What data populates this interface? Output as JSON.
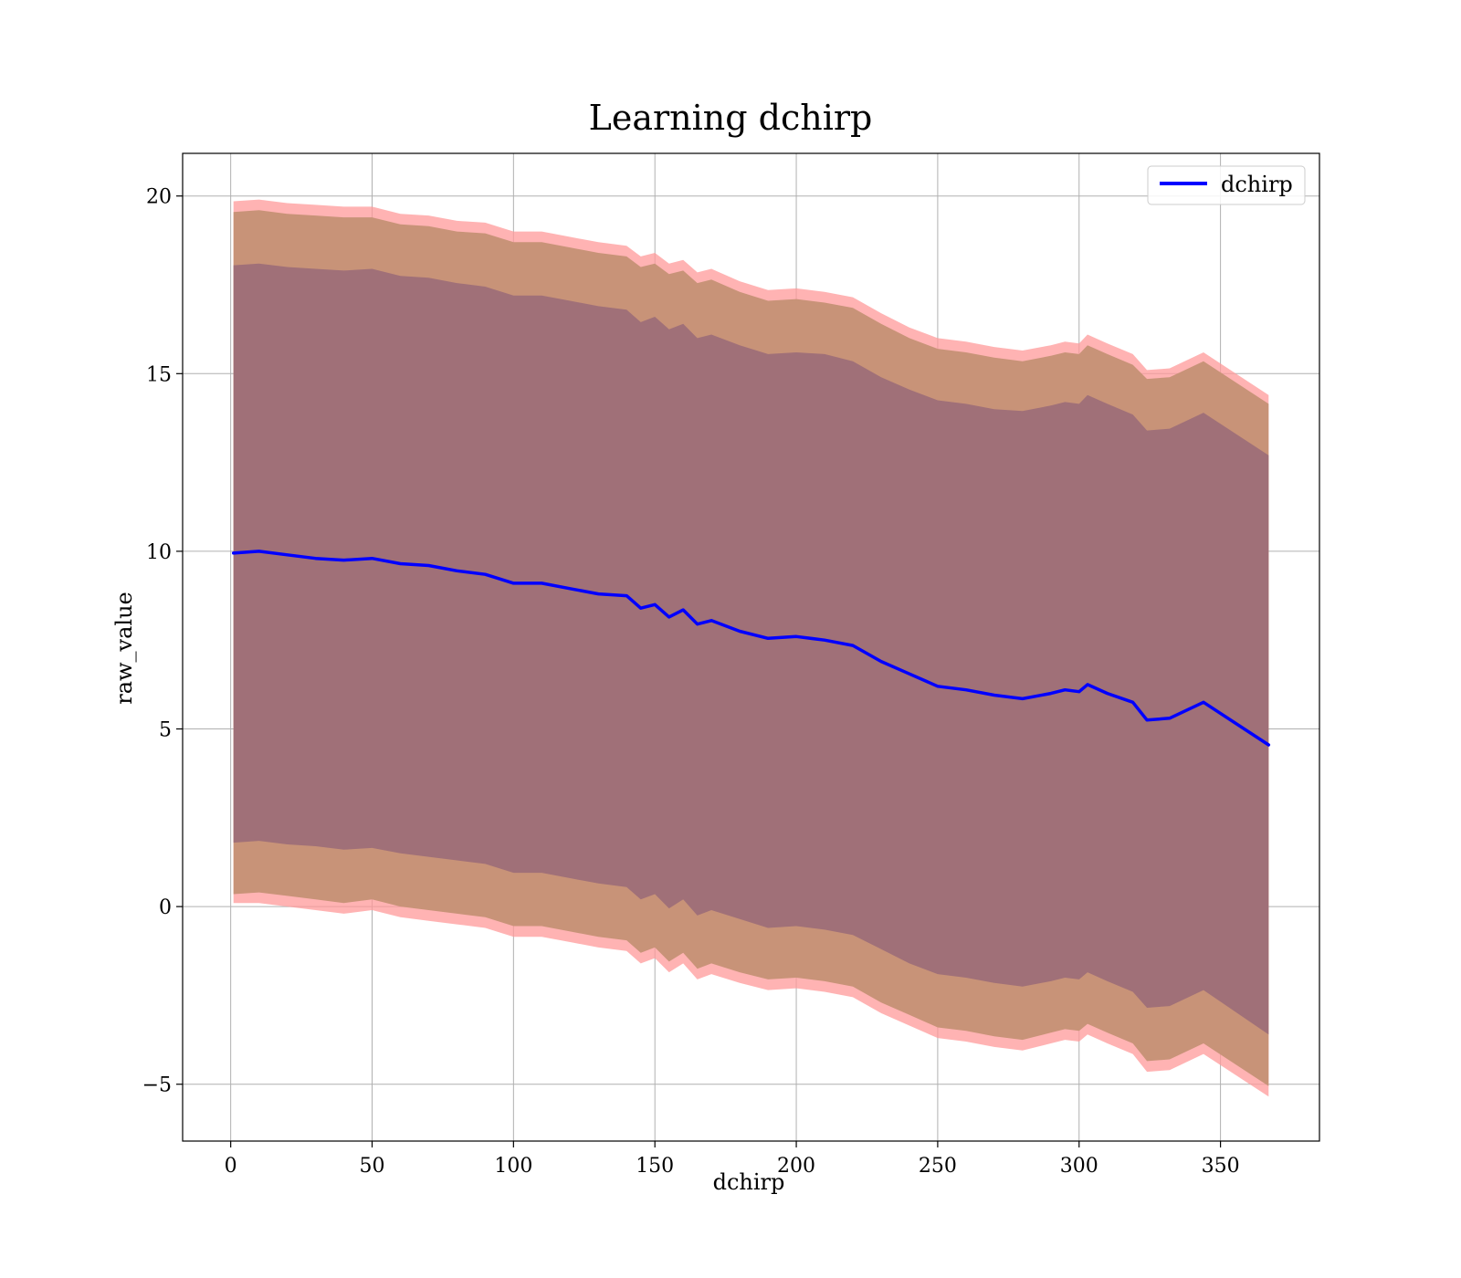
{
  "chart_data": {
    "type": "area",
    "title": "Learning dchirp",
    "xlabel": "dchirp",
    "ylabel": "raw_value",
    "xlim": [
      -17,
      385
    ],
    "ylim": [
      -6.6,
      21.2
    ],
    "x_ticks": [
      0,
      50,
      100,
      150,
      200,
      250,
      300,
      350
    ],
    "y_ticks": [
      -5,
      0,
      5,
      10,
      15,
      20
    ],
    "x_tick_labels": [
      "0",
      "50",
      "100",
      "150",
      "200",
      "250",
      "300",
      "350"
    ],
    "y_tick_labels": [
      "−5",
      "0",
      "5",
      "10",
      "15",
      "20"
    ],
    "grid": true,
    "legend": {
      "position": "top-right",
      "entries": [
        "dchirp"
      ]
    },
    "colors": {
      "line": "#0000ff",
      "band_outer": "#ff9999",
      "band_middle": "#c89378",
      "band_inner": "#a07078",
      "grid": "#b0b0b0"
    },
    "series": [
      {
        "name": "dchirp",
        "x": [
          1,
          10,
          20,
          30,
          40,
          50,
          60,
          70,
          80,
          90,
          100,
          110,
          120,
          130,
          140,
          145,
          150,
          155,
          160,
          165,
          170,
          180,
          190,
          200,
          210,
          220,
          230,
          240,
          250,
          260,
          270,
          280,
          290,
          295,
          300,
          303,
          310,
          319,
          324,
          332,
          344,
          367
        ],
        "y": [
          9.95,
          10.0,
          9.9,
          9.8,
          9.75,
          9.8,
          9.65,
          9.6,
          9.45,
          9.35,
          9.1,
          9.1,
          8.95,
          8.8,
          8.75,
          8.4,
          8.5,
          8.15,
          8.35,
          7.95,
          8.05,
          7.75,
          7.55,
          7.6,
          7.5,
          7.35,
          6.9,
          6.55,
          6.2,
          6.1,
          5.95,
          5.85,
          6.0,
          6.1,
          6.05,
          6.25,
          6.0,
          5.75,
          5.25,
          5.3,
          5.75,
          4.55
        ]
      }
    ],
    "bands": [
      {
        "level": "outer",
        "x": [
          1,
          10,
          20,
          30,
          40,
          50,
          60,
          70,
          80,
          90,
          100,
          110,
          120,
          130,
          140,
          145,
          150,
          155,
          160,
          165,
          170,
          180,
          190,
          200,
          210,
          220,
          230,
          240,
          250,
          260,
          270,
          280,
          290,
          295,
          300,
          303,
          310,
          319,
          324,
          332,
          344,
          367
        ],
        "upper": [
          19.85,
          19.9,
          19.8,
          19.75,
          19.7,
          19.7,
          19.5,
          19.45,
          19.3,
          19.25,
          19.0,
          19.0,
          18.85,
          18.7,
          18.6,
          18.3,
          18.4,
          18.1,
          18.2,
          17.85,
          17.95,
          17.6,
          17.35,
          17.4,
          17.3,
          17.15,
          16.7,
          16.3,
          16.0,
          15.9,
          15.75,
          15.65,
          15.8,
          15.9,
          15.85,
          16.1,
          15.85,
          15.55,
          15.1,
          15.15,
          15.6,
          14.4
        ],
        "lower": [
          0.1,
          0.1,
          0.0,
          -0.1,
          -0.2,
          -0.1,
          -0.3,
          -0.4,
          -0.5,
          -0.6,
          -0.85,
          -0.85,
          -1.0,
          -1.15,
          -1.25,
          -1.6,
          -1.45,
          -1.85,
          -1.6,
          -2.05,
          -1.9,
          -2.15,
          -2.35,
          -2.3,
          -2.4,
          -2.55,
          -3.0,
          -3.35,
          -3.7,
          -3.8,
          -3.95,
          -4.05,
          -3.85,
          -3.75,
          -3.8,
          -3.6,
          -3.85,
          -4.15,
          -4.65,
          -4.6,
          -4.15,
          -5.35
        ]
      },
      {
        "level": "middle",
        "x": [
          1,
          10,
          20,
          30,
          40,
          50,
          60,
          70,
          80,
          90,
          100,
          110,
          120,
          130,
          140,
          145,
          150,
          155,
          160,
          165,
          170,
          180,
          190,
          200,
          210,
          220,
          230,
          240,
          250,
          260,
          270,
          280,
          290,
          295,
          300,
          303,
          310,
          319,
          324,
          332,
          344,
          367
        ],
        "upper": [
          19.55,
          19.6,
          19.5,
          19.45,
          19.4,
          19.4,
          19.2,
          19.15,
          19.0,
          18.95,
          18.7,
          18.7,
          18.55,
          18.4,
          18.3,
          18.0,
          18.1,
          17.8,
          17.9,
          17.55,
          17.65,
          17.3,
          17.05,
          17.1,
          17.0,
          16.85,
          16.4,
          16.0,
          15.7,
          15.6,
          15.45,
          15.35,
          15.5,
          15.6,
          15.55,
          15.8,
          15.55,
          15.25,
          14.85,
          14.9,
          15.35,
          14.15
        ],
        "lower": [
          0.35,
          0.4,
          0.3,
          0.2,
          0.1,
          0.2,
          0.0,
          -0.1,
          -0.2,
          -0.3,
          -0.55,
          -0.55,
          -0.7,
          -0.85,
          -0.95,
          -1.3,
          -1.15,
          -1.55,
          -1.3,
          -1.75,
          -1.6,
          -1.85,
          -2.05,
          -2.0,
          -2.1,
          -2.25,
          -2.7,
          -3.05,
          -3.4,
          -3.5,
          -3.65,
          -3.75,
          -3.55,
          -3.45,
          -3.5,
          -3.3,
          -3.55,
          -3.85,
          -4.35,
          -4.3,
          -3.85,
          -5.05
        ]
      },
      {
        "level": "inner",
        "x": [
          1,
          10,
          20,
          30,
          40,
          50,
          60,
          70,
          80,
          90,
          100,
          110,
          120,
          130,
          140,
          145,
          150,
          155,
          160,
          165,
          170,
          180,
          190,
          200,
          210,
          220,
          230,
          240,
          250,
          260,
          270,
          280,
          290,
          295,
          300,
          303,
          310,
          319,
          324,
          332,
          344,
          367
        ],
        "upper": [
          18.05,
          18.1,
          18.0,
          17.95,
          17.9,
          17.95,
          17.75,
          17.7,
          17.55,
          17.45,
          17.2,
          17.2,
          17.05,
          16.9,
          16.8,
          16.45,
          16.6,
          16.25,
          16.4,
          16.0,
          16.1,
          15.8,
          15.55,
          15.6,
          15.55,
          15.35,
          14.9,
          14.55,
          14.25,
          14.15,
          14.0,
          13.95,
          14.1,
          14.2,
          14.15,
          14.4,
          14.15,
          13.85,
          13.4,
          13.45,
          13.9,
          12.7
        ],
        "lower": [
          1.8,
          1.85,
          1.75,
          1.7,
          1.6,
          1.65,
          1.5,
          1.4,
          1.3,
          1.2,
          0.95,
          0.95,
          0.8,
          0.65,
          0.55,
          0.2,
          0.35,
          -0.05,
          0.2,
          -0.25,
          -0.1,
          -0.35,
          -0.6,
          -0.55,
          -0.65,
          -0.8,
          -1.2,
          -1.6,
          -1.9,
          -2.0,
          -2.15,
          -2.25,
          -2.1,
          -2.0,
          -2.05,
          -1.85,
          -2.1,
          -2.4,
          -2.85,
          -2.8,
          -2.35,
          -3.6
        ]
      }
    ]
  }
}
